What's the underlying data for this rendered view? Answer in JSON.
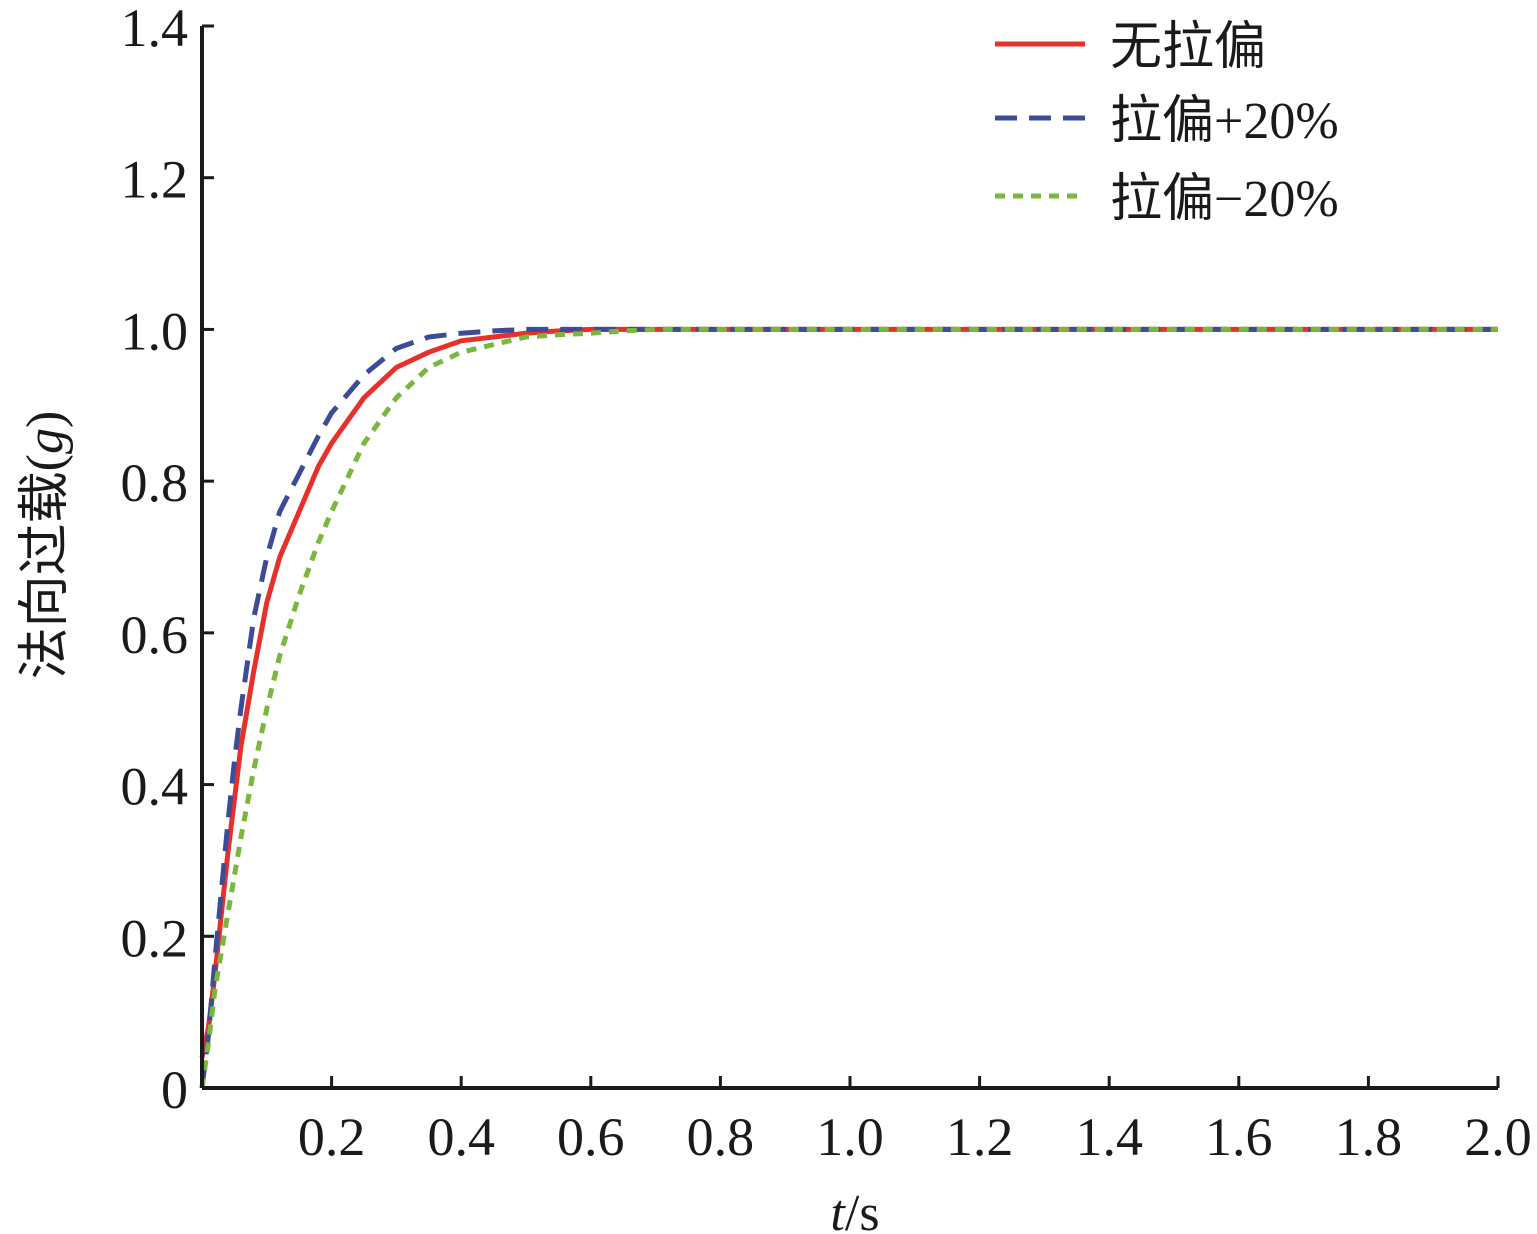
{
  "chart_data": {
    "type": "line",
    "title": "",
    "xlabel_italic": "t",
    "xlabel_unit": "/s",
    "ylabel_main": "法向过载(",
    "ylabel_italic": "g",
    "ylabel_close": ")",
    "xlim": [
      0,
      2.0
    ],
    "ylim": [
      0,
      1.4
    ],
    "x_ticks": [
      0.2,
      0.4,
      0.6,
      0.8,
      1.0,
      1.2,
      1.4,
      1.6,
      1.8,
      2.0
    ],
    "x_tick_labels": [
      "0.2",
      "0.4",
      "0.6",
      "0.8",
      "1.0",
      "1.2",
      "1.4",
      "1.6",
      "1.8",
      "2.0"
    ],
    "y_ticks": [
      0,
      0.2,
      0.4,
      0.6,
      0.8,
      1.0,
      1.2,
      1.4
    ],
    "y_tick_labels": [
      "0",
      "0.2",
      "0.4",
      "0.6",
      "0.8",
      "1.0",
      "1.2",
      "1.4"
    ],
    "grid": false,
    "legend_position": "top-right",
    "series": [
      {
        "name": "无拉偏",
        "color": "#e8302b",
        "style": "solid",
        "x": [
          0,
          0.01,
          0.02,
          0.03,
          0.04,
          0.05,
          0.06,
          0.08,
          0.1,
          0.12,
          0.15,
          0.18,
          0.2,
          0.25,
          0.3,
          0.35,
          0.4,
          0.45,
          0.5,
          0.55,
          0.6,
          0.7,
          0.8,
          1.0,
          1.2,
          1.4,
          1.6,
          1.8,
          2.0
        ],
        "y": [
          0.04,
          0.08,
          0.15,
          0.23,
          0.31,
          0.38,
          0.45,
          0.55,
          0.64,
          0.7,
          0.76,
          0.82,
          0.85,
          0.91,
          0.95,
          0.97,
          0.985,
          0.99,
          0.995,
          0.998,
          1.0,
          1.0,
          1.0,
          1.0,
          1.0,
          1.0,
          1.0,
          1.0,
          1.0
        ]
      },
      {
        "name": "拉偏+20%",
        "color": "#3e4c96",
        "style": "dashed",
        "x": [
          0,
          0.01,
          0.02,
          0.03,
          0.04,
          0.05,
          0.06,
          0.08,
          0.1,
          0.12,
          0.15,
          0.18,
          0.2,
          0.25,
          0.3,
          0.35,
          0.4,
          0.45,
          0.5,
          0.6,
          0.7,
          0.8,
          1.0,
          1.2,
          1.4,
          1.6,
          1.8,
          2.0
        ],
        "y": [
          0.0,
          0.07,
          0.17,
          0.26,
          0.35,
          0.43,
          0.5,
          0.62,
          0.7,
          0.76,
          0.81,
          0.86,
          0.89,
          0.94,
          0.975,
          0.99,
          0.995,
          0.998,
          1.0,
          1.0,
          1.0,
          1.0,
          1.0,
          1.0,
          1.0,
          1.0,
          1.0,
          1.0
        ]
      },
      {
        "name": "拉偏−20%",
        "color": "#79b83c",
        "style": "dotted",
        "x": [
          0,
          0.01,
          0.02,
          0.03,
          0.04,
          0.05,
          0.06,
          0.08,
          0.1,
          0.12,
          0.15,
          0.18,
          0.2,
          0.25,
          0.3,
          0.35,
          0.4,
          0.45,
          0.5,
          0.55,
          0.6,
          0.65,
          0.7,
          0.8,
          1.0,
          1.2,
          1.4,
          1.6,
          1.8,
          2.0
        ],
        "y": [
          0.0,
          0.06,
          0.13,
          0.18,
          0.23,
          0.28,
          0.33,
          0.42,
          0.5,
          0.57,
          0.65,
          0.72,
          0.76,
          0.85,
          0.91,
          0.95,
          0.97,
          0.98,
          0.99,
          0.993,
          0.995,
          0.998,
          1.0,
          1.0,
          1.0,
          1.0,
          1.0,
          1.0,
          1.0,
          1.0
        ]
      }
    ]
  }
}
